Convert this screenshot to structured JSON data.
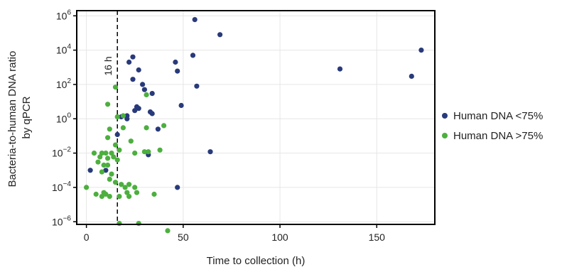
{
  "chart_data": {
    "type": "scatter",
    "xlabel": "Time to collection (h)",
    "ylabel_lines": [
      "Bacteria-to-human DNA ratio",
      "by qPCR"
    ],
    "x_scale": "linear",
    "y_scale": "log10",
    "xlim": [
      -5,
      180
    ],
    "ylim": [
      7e-07,
      2000000.0
    ],
    "x_ticks": [
      0,
      50,
      100,
      150
    ],
    "y_ticks": [
      {
        "value": 1000000.0,
        "base": "10",
        "exp": "6"
      },
      {
        "value": 10000.0,
        "base": "10",
        "exp": "4"
      },
      {
        "value": 100.0,
        "base": "10",
        "exp": "2"
      },
      {
        "value": 1,
        "base": "10",
        "exp": "0"
      },
      {
        "value": 0.01,
        "base": "10",
        "exp": "−2"
      },
      {
        "value": 0.0001,
        "base": "10",
        "exp": "−4"
      },
      {
        "value": 1e-06,
        "base": "10",
        "exp": "−6"
      }
    ],
    "grid": true,
    "legend_position": "right",
    "reference_line": {
      "x": 16,
      "label": "16 h",
      "style": "dashed"
    },
    "series": [
      {
        "name": "Human DNA <75%",
        "color": "#283a7a",
        "points": [
          [
            56,
            600000
          ],
          [
            69,
            80000
          ],
          [
            173,
            10000
          ],
          [
            24,
            4000
          ],
          [
            55,
            5000
          ],
          [
            22,
            2000
          ],
          [
            46,
            2000
          ],
          [
            27,
            700
          ],
          [
            47,
            600
          ],
          [
            131,
            800
          ],
          [
            168,
            300
          ],
          [
            24,
            200
          ],
          [
            29,
            100
          ],
          [
            30,
            50
          ],
          [
            57,
            80
          ],
          [
            34,
            30
          ],
          [
            49,
            6
          ],
          [
            26,
            5
          ],
          [
            27,
            4
          ],
          [
            25,
            3
          ],
          [
            33,
            2.5
          ],
          [
            34,
            2
          ],
          [
            18,
            1.3
          ],
          [
            21,
            1.5
          ],
          [
            21,
            1.0
          ],
          [
            37,
            0.25
          ],
          [
            16,
            0.12
          ],
          [
            64,
            0.012
          ],
          [
            32,
            0.008
          ],
          [
            2,
            0.001
          ],
          [
            10,
            0.001
          ],
          [
            47,
            0.0001
          ]
        ]
      },
      {
        "name": "Human DNA >75%",
        "color": "#4caf3e",
        "points": [
          [
            15,
            70
          ],
          [
            31,
            25
          ],
          [
            11,
            7
          ],
          [
            16,
            1.3
          ],
          [
            19,
            1.5
          ],
          [
            19,
            0.3
          ],
          [
            40,
            0.4
          ],
          [
            31,
            0.3
          ],
          [
            12,
            0.25
          ],
          [
            11,
            0.08
          ],
          [
            15,
            0.03
          ],
          [
            23,
            0.05
          ],
          [
            4,
            0.01
          ],
          [
            8,
            0.01
          ],
          [
            10,
            0.01
          ],
          [
            13,
            0.01
          ],
          [
            17,
            0.015
          ],
          [
            25,
            0.01
          ],
          [
            30,
            0.012
          ],
          [
            32,
            0.012
          ],
          [
            38,
            0.015
          ],
          [
            7,
            0.006
          ],
          [
            11,
            0.005
          ],
          [
            14,
            0.006
          ],
          [
            16,
            0.004
          ],
          [
            6,
            0.003
          ],
          [
            9,
            0.002
          ],
          [
            11,
            0.002
          ],
          [
            8,
            0.0008
          ],
          [
            13,
            0.0006
          ],
          [
            12,
            0.0003
          ],
          [
            15,
            0.0002
          ],
          [
            18,
            0.00015
          ],
          [
            20,
            0.0001
          ],
          [
            22,
            0.00015
          ],
          [
            25,
            0.0001
          ],
          [
            0,
            0.0001
          ],
          [
            5,
            4e-05
          ],
          [
            8,
            3e-05
          ],
          [
            10,
            4e-05
          ],
          [
            12,
            3e-05
          ],
          [
            9,
            5e-05
          ],
          [
            17,
            3e-05
          ],
          [
            21,
            5e-05
          ],
          [
            22,
            3e-05
          ],
          [
            26,
            5e-05
          ],
          [
            35,
            4e-05
          ],
          [
            17,
            8e-07
          ],
          [
            27,
            8e-07
          ],
          [
            42,
            3e-07
          ]
        ]
      }
    ]
  }
}
